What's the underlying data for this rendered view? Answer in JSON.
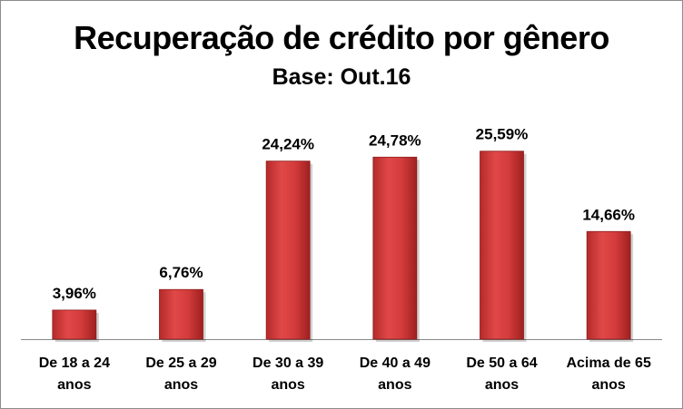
{
  "chart_data": {
    "type": "bar",
    "title": "Recuperação de crédito por gênero",
    "subtitle": "Base: Out.16",
    "categories": [
      [
        "De 18 a 24",
        "anos"
      ],
      [
        "De 25 a 29",
        "anos"
      ],
      [
        "De 30 a 39",
        "anos"
      ],
      [
        "De 40 a 49",
        "anos"
      ],
      [
        "De 50 a 64",
        "anos"
      ],
      [
        "Acima de 65",
        "anos"
      ]
    ],
    "values": [
      3.96,
      6.76,
      24.24,
      24.78,
      25.59,
      14.66
    ],
    "value_labels": [
      "3,96%",
      "6,76%",
      "24,24%",
      "24,78%",
      "25,59%",
      "14,66%"
    ],
    "ylim": [
      0,
      30
    ],
    "grid": false,
    "legend": "none",
    "bar_color": "#cc3333"
  }
}
